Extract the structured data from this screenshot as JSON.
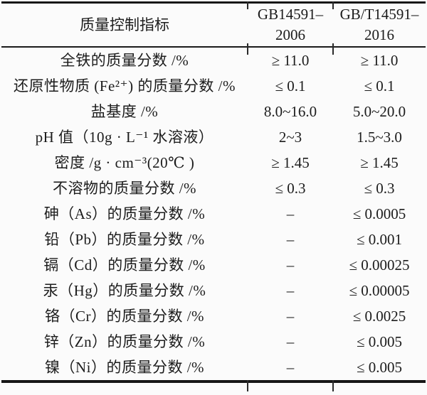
{
  "page": {
    "background_color": "#fbfbfb",
    "text_color": "#1c1c1c",
    "rule_color": "#161616"
  },
  "table": {
    "header": {
      "indicator": "质量控制指标",
      "standard_2006": "GB14591–\n2006",
      "standard_2016": "GB/T14591–\n2016"
    },
    "rows": [
      {
        "indicator": "全铁的质量分数 /%",
        "gb2006": "≥ 11.0",
        "gb2016": "≥ 11.0"
      },
      {
        "indicator": "还原性物质 (Fe²⁺) 的质量分数 /%",
        "gb2006": "≤ 0.1",
        "gb2016": "≤ 0.1"
      },
      {
        "indicator": "盐基度 /%",
        "gb2006": "8.0~16.0",
        "gb2016": "5.0~20.0"
      },
      {
        "indicator": "pH 值（10g · L⁻¹ 水溶液）",
        "gb2006": "2~3",
        "gb2016": "1.5~3.0"
      },
      {
        "indicator": "密度 /g · cm⁻³(20℃ )",
        "gb2006": "≥ 1.45",
        "gb2016": "≥ 1.45"
      },
      {
        "indicator": "不溶物的质量分数 /%",
        "gb2006": "≤ 0.3",
        "gb2016": "≤ 0.3"
      },
      {
        "indicator": "砷（As）的质量分数 /%",
        "gb2006": "–",
        "gb2016": "≤ 0.0005"
      },
      {
        "indicator": "铅（Pb）的质量分数 /%",
        "gb2006": "–",
        "gb2016": "≤ 0.001"
      },
      {
        "indicator": "镉（Cd）的质量分数 /%",
        "gb2006": "–",
        "gb2016": "≤ 0.00025"
      },
      {
        "indicator": "汞（Hg）的质量分数 /%",
        "gb2006": "–",
        "gb2016": "≤ 0.00005"
      },
      {
        "indicator": "铬（Cr）的质量分数 /%",
        "gb2006": "–",
        "gb2016": "≤ 0.0025"
      },
      {
        "indicator": "锌（Zn）的质量分数 /%",
        "gb2006": "–",
        "gb2016": "≤ 0.005"
      },
      {
        "indicator": "镍（Ni）的质量分数 /%",
        "gb2006": "–",
        "gb2016": "≤ 0.005"
      }
    ]
  }
}
